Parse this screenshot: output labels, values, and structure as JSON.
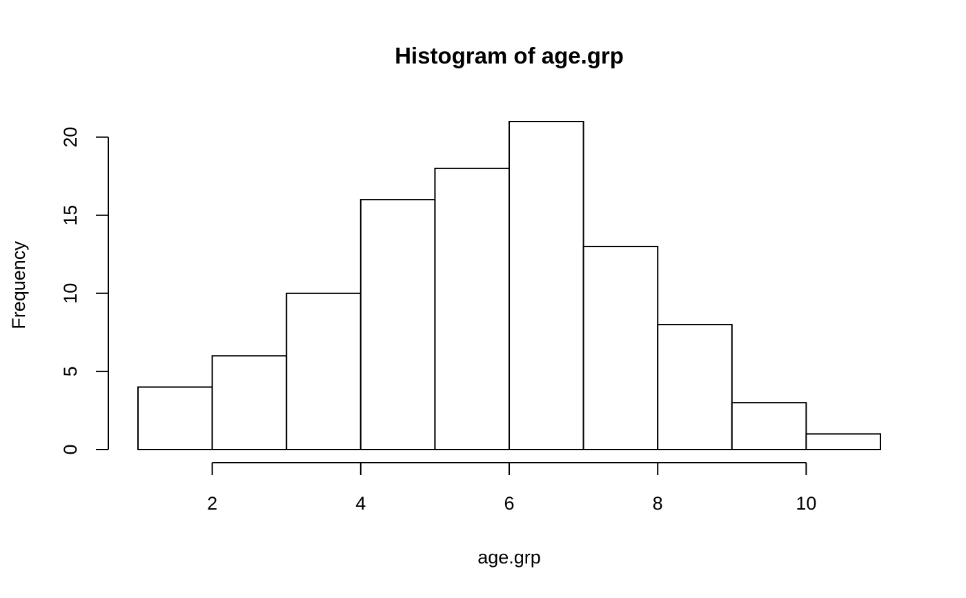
{
  "chart_data": {
    "type": "bar",
    "title": "Histogram of age.grp",
    "xlabel": "age.grp",
    "ylabel": "Frequency",
    "bins": [
      {
        "start": 1,
        "end": 2,
        "count": 4
      },
      {
        "start": 2,
        "end": 3,
        "count": 6
      },
      {
        "start": 3,
        "end": 4,
        "count": 10
      },
      {
        "start": 4,
        "end": 5,
        "count": 16
      },
      {
        "start": 5,
        "end": 6,
        "count": 18
      },
      {
        "start": 6,
        "end": 7,
        "count": 21
      },
      {
        "start": 7,
        "end": 8,
        "count": 13
      },
      {
        "start": 8,
        "end": 9,
        "count": 8
      },
      {
        "start": 9,
        "end": 10,
        "count": 3
      },
      {
        "start": 10,
        "end": 11,
        "count": 1
      }
    ],
    "xlim": [
      1,
      11
    ],
    "ylim": [
      0,
      21
    ],
    "x_ticks": [
      "2",
      "4",
      "6",
      "8",
      "10"
    ],
    "y_ticks": [
      "0",
      "5",
      "10",
      "15",
      "20"
    ],
    "grid": false,
    "bar_fill": "#ffffff",
    "bar_stroke": "#000000"
  }
}
